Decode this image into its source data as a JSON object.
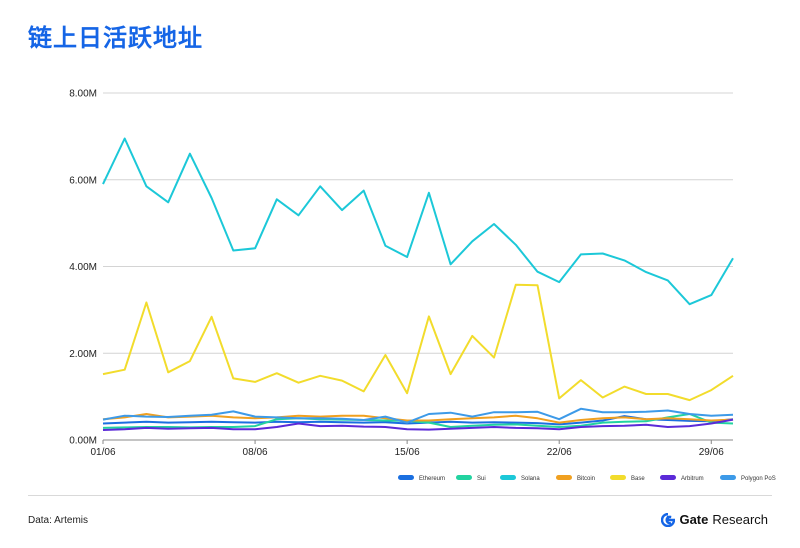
{
  "title": "链上日活跃地址",
  "source": "Data: Artemis",
  "brand": {
    "name": "Gate",
    "suffix": "Research",
    "color": "#1565e6"
  },
  "chart_data": {
    "type": "line",
    "title": "链上日活跃地址",
    "xlabel": "",
    "ylabel": "",
    "ylim": [
      0,
      8000000
    ],
    "yticks": [
      "0.00M",
      "2.00M",
      "4.00M",
      "6.00M",
      "8.00M"
    ],
    "xticks": [
      "01/06",
      "08/06",
      "15/06",
      "22/06",
      "29/06"
    ],
    "grid": true,
    "legend_position": "bottom-right",
    "x": [
      "01/06",
      "02/06",
      "03/06",
      "04/06",
      "05/06",
      "06/06",
      "07/06",
      "08/06",
      "09/06",
      "10/06",
      "11/06",
      "12/06",
      "13/06",
      "14/06",
      "15/06",
      "16/06",
      "17/06",
      "18/06",
      "19/06",
      "20/06",
      "21/06",
      "22/06",
      "23/06",
      "24/06",
      "25/06",
      "26/06",
      "27/06",
      "28/06",
      "29/06",
      "30/06"
    ],
    "series": [
      {
        "name": "Ethereum",
        "color": "#1b6fe0",
        "values": [
          380000,
          400000,
          420000,
          400000,
          410000,
          420000,
          410000,
          400000,
          420000,
          410000,
          420000,
          410000,
          400000,
          410000,
          380000,
          400000,
          420000,
          400000,
          410000,
          400000,
          390000,
          360000,
          400000,
          450000,
          550000,
          480000,
          460000,
          440000,
          430000,
          480000
        ]
      },
      {
        "name": "Sui",
        "color": "#22d3a0",
        "values": [
          280000,
          290000,
          300000,
          300000,
          290000,
          300000,
          300000,
          320000,
          480000,
          500000,
          480000,
          470000,
          460000,
          450000,
          440000,
          400000,
          300000,
          330000,
          350000,
          360000,
          330000,
          300000,
          330000,
          400000,
          420000,
          430000,
          520000,
          600000,
          400000,
          380000
        ]
      },
      {
        "name": "Solana",
        "color": "#1cc8d8",
        "values": [
          5900000,
          6950000,
          5850000,
          5480000,
          6600000,
          5580000,
          4370000,
          4420000,
          5550000,
          5180000,
          5850000,
          5300000,
          5750000,
          4480000,
          4220000,
          5700000,
          4050000,
          4580000,
          4980000,
          4500000,
          3880000,
          3640000,
          4280000,
          4300000,
          4140000,
          3870000,
          3680000,
          3130000,
          3340000,
          4190000
        ]
      },
      {
        "name": "Bitcoin",
        "color": "#f0a020",
        "values": [
          480000,
          520000,
          600000,
          520000,
          540000,
          560000,
          520000,
          500000,
          520000,
          560000,
          540000,
          560000,
          560000,
          500000,
          450000,
          450000,
          480000,
          500000,
          520000,
          560000,
          500000,
          400000,
          460000,
          500000,
          520000,
          480000,
          500000,
          480000,
          450000,
          470000
        ]
      },
      {
        "name": "Base",
        "color": "#f2dc2c",
        "values": [
          1520000,
          1620000,
          3170000,
          1560000,
          1820000,
          2840000,
          1420000,
          1340000,
          1540000,
          1320000,
          1480000,
          1370000,
          1120000,
          1960000,
          1080000,
          2850000,
          1520000,
          2400000,
          1900000,
          3580000,
          3570000,
          960000,
          1380000,
          980000,
          1230000,
          1060000,
          1060000,
          920000,
          1150000,
          1480000
        ]
      },
      {
        "name": "Arbitrum",
        "color": "#5b2ad8",
        "values": [
          230000,
          250000,
          280000,
          260000,
          270000,
          280000,
          250000,
          250000,
          300000,
          380000,
          320000,
          330000,
          310000,
          300000,
          250000,
          240000,
          260000,
          280000,
          300000,
          280000,
          270000,
          250000,
          300000,
          320000,
          330000,
          350000,
          300000,
          320000,
          380000,
          470000
        ]
      },
      {
        "name": "Polygon PoS",
        "color": "#3d9ae8",
        "values": [
          470000,
          560000,
          540000,
          530000,
          560000,
          580000,
          660000,
          540000,
          520000,
          500000,
          500000,
          490000,
          460000,
          540000,
          400000,
          600000,
          630000,
          540000,
          640000,
          640000,
          650000,
          480000,
          720000,
          640000,
          640000,
          650000,
          680000,
          600000,
          560000,
          580000
        ]
      }
    ]
  }
}
